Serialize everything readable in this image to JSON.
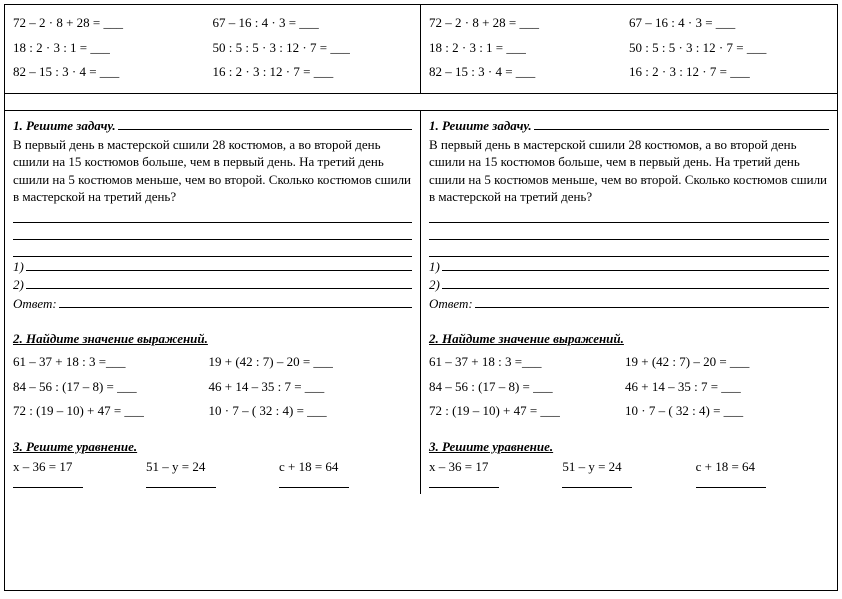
{
  "top": {
    "row1": {
      "left": "72 – 2 · 8 + 28 = ___",
      "right": "67 – 16 : 4 · 3 = ___"
    },
    "row2": {
      "left": "18 : 2  · 3 : 1 = ___",
      "right": "50 :  5 :  5 · 3 : 12 · 7 = ___"
    },
    "row3": {
      "left": "82 – 15 : 3 · 4 = ___",
      "right": "16 : 2 ·  3 : 12 · 7 = ___"
    }
  },
  "task1": {
    "title": "1. Решите задачу.",
    "body": "В первый день в мастерской сшили 28 костюмов, а во второй день сшили на 15 костюмов больше, чем в первый день. На третий день сшили на 5 костюмов меньше, чем во второй. Сколько костюмов сшили в мастерской  на третий день?",
    "n1": "1)",
    "n2": "2)",
    "answer": "Ответ:"
  },
  "task2": {
    "title": "2. Найдите значение выражений.",
    "row1": {
      "left": "61 – 37 + 18 : 3 =___",
      "right": "19 + (42 : 7) – 20 = ___"
    },
    "row2": {
      "left": "84 – 56 : (17 – 8) = ___",
      "right": "46 + 14 – 35 : 7 = ___"
    },
    "row3": {
      "left": "72 : (19 – 10) + 47 = ___",
      "right": "10 · 7 – ( 32 : 4) = ___"
    }
  },
  "task3": {
    "title": "3. Решите уравнение.",
    "eq1": "x – 36 = 17",
    "eq2": "51 – y = 24",
    "eq3": "c + 18 = 64"
  }
}
